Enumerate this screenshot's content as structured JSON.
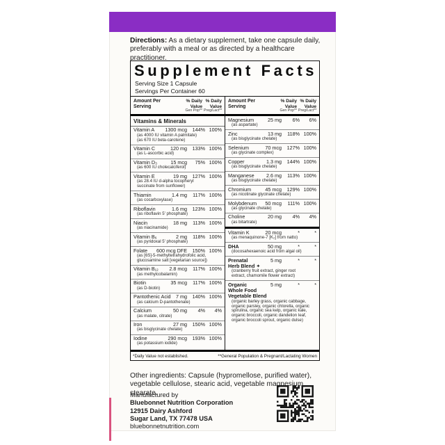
{
  "colors": {
    "band_purple": "#8a2dc4",
    "accent_pink": "#d9537f"
  },
  "icons": [
    "qr-code-icon"
  ],
  "directions": {
    "label": "Directions:",
    "text": "As a dietary supplement, take one capsule daily, preferably with a meal or as directed by a healthcare practitioner."
  },
  "supplement_facts": {
    "title": "Supplement Facts",
    "serving_size": "Serving Size 1 Capsule",
    "servings_per_container": "Servings Per Container 60",
    "headers": {
      "amount": "Amount Per Serving",
      "dv_label": "% Daily Value",
      "gen_sub": "Gen Pop**",
      "preg_sub": "Preg/Lact**"
    },
    "section_title": "Vitamins & Minerals",
    "left_rows": [
      {
        "name": "Vitamin A",
        "amount": "1300 mcg",
        "gen": "144%",
        "preg": "100%",
        "sub": [
          "(as 4000 IU vitamin A palmitate)",
          "(as 670 IU beta-carotene)"
        ]
      },
      {
        "name": "Vitamin C",
        "amount": "120 mg",
        "gen": "133%",
        "preg": "100%",
        "sub": [
          "(as L-ascorbic acid)"
        ]
      },
      {
        "name": "Vitamin D₃",
        "amount": "15 mcg",
        "gen": "75%",
        "preg": "100%",
        "sub": [
          "(as 600 IU cholecalciferol)"
        ]
      },
      {
        "name": "Vitamin E",
        "amount": "19 mg",
        "gen": "127%",
        "preg": "100%",
        "sub": [
          "(as 28.4 IU d-alpha tocopheryl",
          "succinate from sunflower)"
        ]
      },
      {
        "name": "Thiamin",
        "amount": "1.4 mg",
        "gen": "117%",
        "preg": "100%",
        "sub": [
          "(as cocarboxylase)"
        ]
      },
      {
        "name": "Riboflavin",
        "amount": "1.6 mg",
        "gen": "123%",
        "preg": "100%",
        "sub": [
          "(as riboflavin 5' phosphate)"
        ]
      },
      {
        "name": "Niacin",
        "amount": "18 mg",
        "gen": "113%",
        "preg": "100%",
        "sub": [
          "(as niacinamide)"
        ]
      },
      {
        "name": "Vitamin B₆",
        "amount": "2 mg",
        "gen": "118%",
        "preg": "100%",
        "sub": [
          "(as pyridoxal 5' phosphate)"
        ]
      },
      {
        "name": "Folate",
        "amount": "600 mcg DFE",
        "gen": "150%",
        "preg": "100%",
        "sub": [
          "(as [6S]-5-methyltetrahydrofolic acid,",
          "glucosamine salt [vegetarian source])"
        ]
      },
      {
        "name": "Vitamin B₁₂",
        "amount": "2.8 mcg",
        "gen": "117%",
        "preg": "100%",
        "sub": [
          "(as methylcobalamin)"
        ]
      },
      {
        "name": "Biotin",
        "amount": "35 mcg",
        "gen": "117%",
        "preg": "100%",
        "sub": [
          "(as D-biotin)"
        ]
      },
      {
        "name": "Pantothenic Acid",
        "amount": "7 mg",
        "gen": "140%",
        "preg": "100%",
        "sub": [
          "(as calcium D-pantothenate)"
        ]
      },
      {
        "name": "Calcium",
        "amount": "50 mg",
        "gen": "4%",
        "preg": "4%",
        "sub": [
          "(as malate, citrate)"
        ]
      },
      {
        "name": "Iron",
        "amount": "27 mg",
        "gen": "150%",
        "preg": "100%",
        "sub": [
          "(as bisglycinate chelate)"
        ]
      },
      {
        "name": "Iodine",
        "amount": "290 mcg",
        "gen": "193%",
        "preg": "100%",
        "sub": [
          "(as potassium iodide)"
        ]
      }
    ],
    "right_rows": [
      {
        "name": "Magnesium",
        "amount": "25 mg",
        "gen": "6%",
        "preg": "6%",
        "sub": [
          "(as aspartate)"
        ]
      },
      {
        "name": "Zinc",
        "amount": "13 mg",
        "gen": "118%",
        "preg": "100%",
        "sub": [
          "(as bisglycinate chelate)"
        ]
      },
      {
        "name": "Selenium",
        "amount": "70 mcg",
        "gen": "127%",
        "preg": "100%",
        "sub": [
          "(as glycinate complex)"
        ]
      },
      {
        "name": "Copper",
        "amount": "1.3 mg",
        "gen": "144%",
        "preg": "100%",
        "sub": [
          "(as bisglycinate chelate)"
        ]
      },
      {
        "name": "Manganese",
        "amount": "2.6 mg",
        "gen": "113%",
        "preg": "100%",
        "sub": [
          "(as bisglycinate chelate)"
        ]
      },
      {
        "name": "Chromium",
        "amount": "45 mcg",
        "gen": "129%",
        "preg": "100%",
        "sub": [
          "(as nicotinate glycinate chelate)"
        ]
      },
      {
        "name": "Molybdenum",
        "amount": "50 mcg",
        "gen": "111%",
        "preg": "100%",
        "sub": [
          "(as glycinate chelate)"
        ]
      },
      {
        "name": "Choline",
        "amount": "20 mg",
        "gen": "4%",
        "preg": "4%",
        "sub": [
          "(as bitartrate)"
        ],
        "divider_after": true
      },
      {
        "name": "Vitamin K",
        "amount": "20 mcg",
        "gen": "*",
        "preg": "*",
        "sub": [
          "(as menaquinone-7 [K₂] from natto)"
        ]
      },
      {
        "name": "DHA",
        "amount": "50 mg",
        "gen": "*",
        "preg": "*",
        "bold": true,
        "sub": [
          "(docosahexaenoic acid from algal oil)"
        ]
      },
      {
        "name": "Prenatal",
        "name_extra": [
          "Herb Blend ✦"
        ],
        "amount": "5 mg",
        "gen": "*",
        "preg": "*",
        "bold": true,
        "sub": [
          "(cranberry fruit extract, ginger root",
          "extract, chamomile flower extract)"
        ]
      },
      {
        "name": "Organic",
        "name_extra": [
          "Whole Food",
          "Vegetable Blend"
        ],
        "amount": "5 mg",
        "gen": "*",
        "preg": "*",
        "bold": true,
        "sub": [
          "(organic barley grass, organic cabbage,",
          "organic parsley, organic chlorella, organic",
          "spirulina, organic sea kelp, organic kale,",
          "organic broccoli, organic dandelion leaf,",
          "organic broccoli sprout, organic dulse)"
        ]
      }
    ],
    "footnotes": {
      "left": "*Daily Value not established.",
      "right": "**General Population & Pregnant/Lactating Women"
    }
  },
  "other_ingredients": "Other ingredients: Capsule (hypromellose, purified water), vegetable cellulose, stearic acid, vegetable magnesium stearate.",
  "manufacturer": {
    "intro": "Manufactured by",
    "name": "Bluebonnet Nutrition Corporation",
    "address1": "12915 Dairy Ashford",
    "address2": "Sugar Land, TX 77478 USA",
    "website": "bluebonnetnutrition.com"
  }
}
